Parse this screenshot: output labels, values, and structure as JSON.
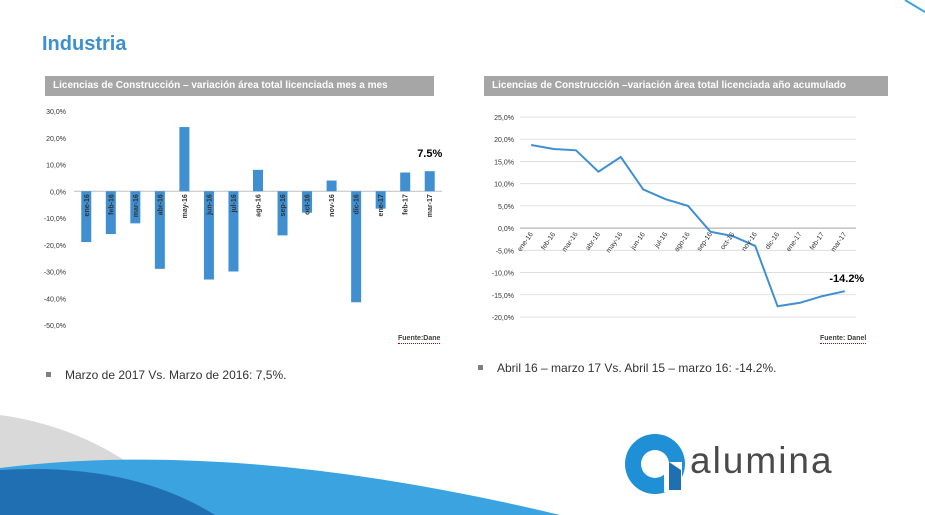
{
  "page": {
    "title": "Industria"
  },
  "logo": {
    "text": "alumina"
  },
  "colors": {
    "bar": "#3f8fd1",
    "line": "#3f8fd1",
    "header_bg": "#a6a6a6",
    "title": "#3d8fcf",
    "wave_dark": "#1f6fb2",
    "wave_light": "#3aa3e0",
    "wave_gray": "#d9d9d9"
  },
  "left_chart": {
    "header": "Licencias de Construcción – variación área total licenciada mes a mes",
    "source": "Fuente:Dane",
    "bullet": "Marzo de 2017 Vs. Marzo de 2016: 7,5%."
  },
  "right_chart": {
    "header": "Licencias de Construcción –variación área total licenciada año acumulado",
    "source": "Fuente: Danel",
    "bullet": "Abril 16 – marzo 17  Vs. Abril 15 – marzo 16:  -14.2%."
  },
  "chart_data": [
    {
      "type": "bar",
      "title": "Licencias de Construcción – variación área total licenciada mes a mes",
      "categories": [
        "ene-16",
        "feb-16",
        "mar-16",
        "abr-16",
        "may-16",
        "jun-16",
        "jul-16",
        "ago-16",
        "sep-16",
        "oct-16",
        "nov-16",
        "dic-16",
        "ene-17",
        "feb-17",
        "mar-17"
      ],
      "values": [
        -19,
        -16,
        -12,
        -29,
        24,
        -33,
        -30,
        8,
        -16.5,
        -8,
        4,
        -41.5,
        -6.5,
        7,
        7.5
      ],
      "yticks": [
        "30,0%",
        "20,0%",
        "10,0%",
        "0,0%",
        "-10,0%",
        "-20,0%",
        "-30,0%",
        "-40,0%",
        "-50,0%"
      ],
      "ylim": [
        -50,
        30
      ],
      "annotation": {
        "category": "mar-17",
        "text": "7.5%"
      },
      "grid": false
    },
    {
      "type": "line",
      "title": "Licencias de Construcción –variación área total licenciada año acumulado",
      "categories": [
        "ene-16",
        "feb-16",
        "mar-16",
        "abr-16",
        "may-16",
        "jun-16",
        "jul-16",
        "ago-16",
        "sep-16",
        "oct-16",
        "nov-16",
        "dic-16",
        "ene-17",
        "feb-17",
        "mar-17"
      ],
      "values": [
        18.7,
        17.8,
        17.5,
        12.7,
        16.0,
        8.7,
        6.5,
        5.0,
        -0.8,
        -1.8,
        -4.0,
        -17.6,
        -16.8,
        -15.3,
        -14.2
      ],
      "yticks": [
        "25,0%",
        "20,0%",
        "15,0%",
        "10,0%",
        "5,0%",
        "0,0%",
        "-5,0%",
        "-10,0%",
        "-15,0%",
        "-20,0%"
      ],
      "ylim": [
        -20,
        25
      ],
      "annotation": {
        "category": "mar-17",
        "text": "-14.2%"
      },
      "grid": true
    }
  ]
}
